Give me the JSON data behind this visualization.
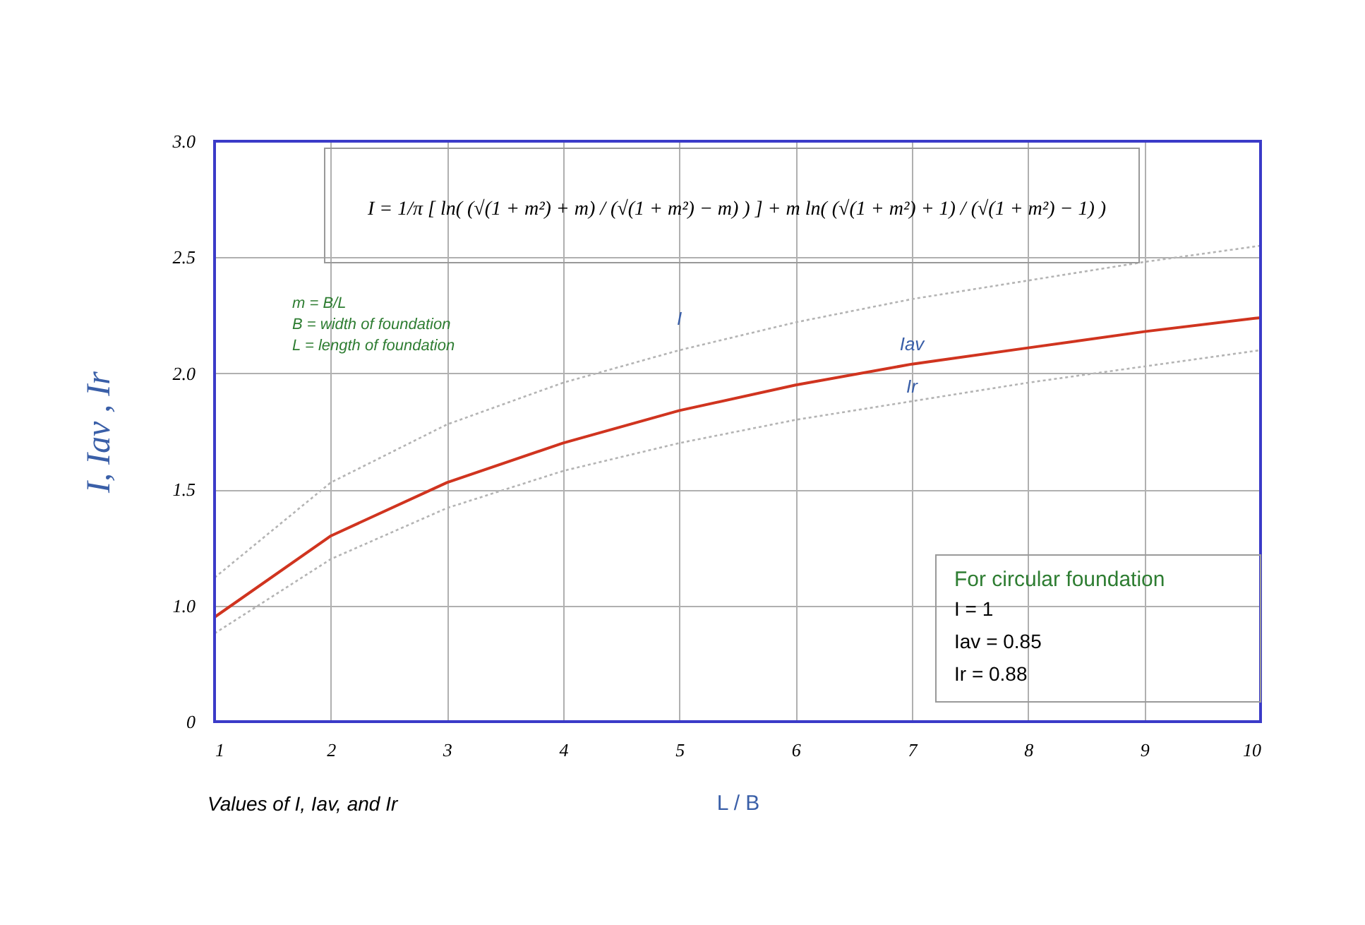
{
  "chart_data": {
    "type": "line",
    "xlabel": "L / B",
    "ylabel": "I,  Iav ,  Ir",
    "x": [
      1,
      2,
      3,
      4,
      5,
      6,
      7,
      8,
      9,
      10
    ],
    "series": [
      {
        "name": "I",
        "color": "#b4b4b4",
        "line_style": "dotted",
        "values": [
          1.12,
          1.53,
          1.78,
          1.96,
          2.1,
          2.22,
          2.32,
          2.4,
          2.48,
          2.55
        ]
      },
      {
        "name": "Iav",
        "color": "#d0341f",
        "line_style": "solid",
        "values": [
          0.95,
          1.3,
          1.53,
          1.7,
          1.84,
          1.95,
          2.04,
          2.11,
          2.18,
          2.24
        ]
      },
      {
        "name": "Ir",
        "color": "#b4b4b4",
        "line_style": "dotted",
        "values": [
          0.88,
          1.2,
          1.42,
          1.58,
          1.7,
          1.8,
          1.88,
          1.96,
          2.03,
          2.1
        ]
      }
    ],
    "xlim": [
      1,
      10
    ],
    "xticks": [
      1,
      2,
      3,
      4,
      5,
      6,
      7,
      8,
      9,
      10
    ],
    "ylim": [
      0.5,
      3.0
    ],
    "yticks": [
      {
        "value": 0.5,
        "label": "0"
      },
      {
        "value": 1.0,
        "label": "1.0"
      },
      {
        "value": 1.5,
        "label": "1.5"
      },
      {
        "value": 2.0,
        "label": "2.0"
      },
      {
        "value": 2.5,
        "label": "2.5"
      },
      {
        "value": 3.0,
        "label": "3.0"
      }
    ],
    "grid": true,
    "legend": false,
    "marker": "none",
    "annotations": [
      "I = 1/π [ ln( (√(1 + m²) + m) / (√(1 + m²) − m) ) ] + m ln( (√(1 + m²) + 1) / (√(1 + m²) − 1) )",
      "m = B/L",
      "B = width of foundation",
      "L = length of foundation",
      "For circular foundation",
      "I = 1",
      "Iav = 0.85",
      "Ir = 0.88",
      "Values of  I, Iav, and Ir"
    ]
  }
}
